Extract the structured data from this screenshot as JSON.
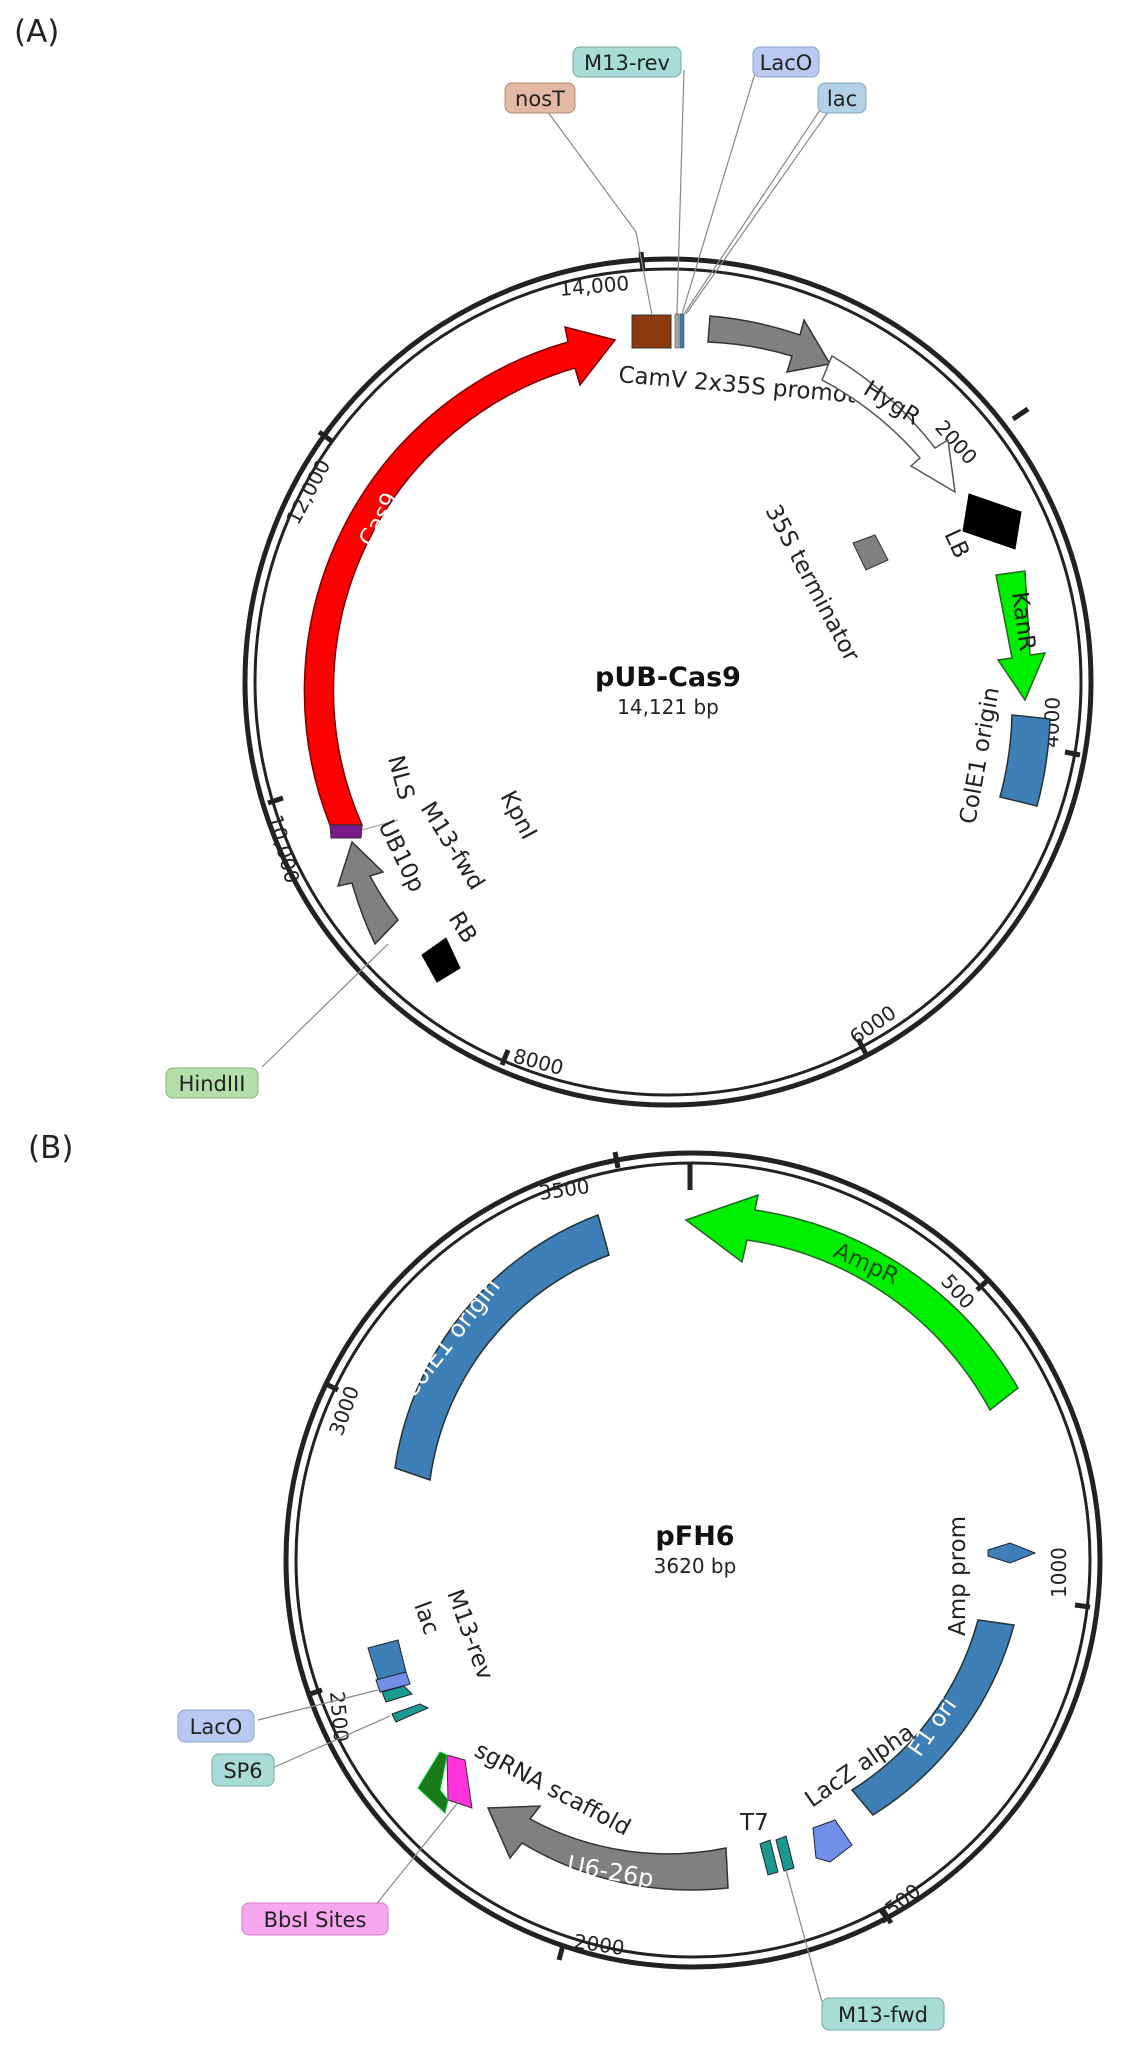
{
  "panels": {
    "a_label": "(A)",
    "b_label": "(B)"
  },
  "plasmid_a": {
    "name": "pUB-Cas9",
    "size": "14,121 bp",
    "ticks": [
      "14,000",
      "2000",
      "4000",
      "6000",
      "8000",
      "10,000",
      "12,000"
    ],
    "features": {
      "cas9": "Cas9",
      "camv": "CamV 2x35S promoter",
      "hygr": "HygR",
      "lb": "LB",
      "kanr": "KanR",
      "colE1": "ColE1 origin",
      "term35s": "35S terminator",
      "nls": "NLS",
      "ub10p": "UB10p",
      "m13fwd": "M13-fwd",
      "rb": "RB",
      "kpni": "KpnI"
    },
    "callouts": {
      "m13rev": "M13-rev",
      "laco": "LacO",
      "nost": "nosT",
      "lac": "lac",
      "hindiii": "HindIII"
    },
    "colors": {
      "cas9": "#ff0000",
      "camv": "#808080",
      "kanr": "#00ee00",
      "colE1": "#3f7fb7",
      "nost": "#8b3a0e",
      "lb_rb": "#000000",
      "nls": "#7a1a8a"
    }
  },
  "plasmid_b": {
    "name": "pFH6",
    "size": "3620 bp",
    "ticks": [
      "3500",
      "500",
      "1000",
      "1500",
      "2000",
      "2500",
      "3000"
    ],
    "features": {
      "colE1": "ColE1 origin",
      "ampr": "AmpR",
      "ampprom": "Amp prom",
      "f1ori": "F1 ori",
      "lacz": "LacZ alpha",
      "t7": "T7",
      "u626p": "U6-26p",
      "sgrna": "sgRNA scaffold",
      "m13rev": "M13-rev",
      "lac": "lac"
    },
    "callouts": {
      "laco": "LacO",
      "sp6": "SP6",
      "bbsi": "BbsI Sites",
      "m13fwd": "M13-fwd"
    },
    "colors": {
      "colE1": "#3f7fb7",
      "ampr": "#00ee00",
      "u626p": "#808080",
      "sgrna": "#1a7a1a",
      "bbsi": "#ff33dd",
      "lacz": "#6f8fe8",
      "t7": "#1a9a8e"
    }
  }
}
